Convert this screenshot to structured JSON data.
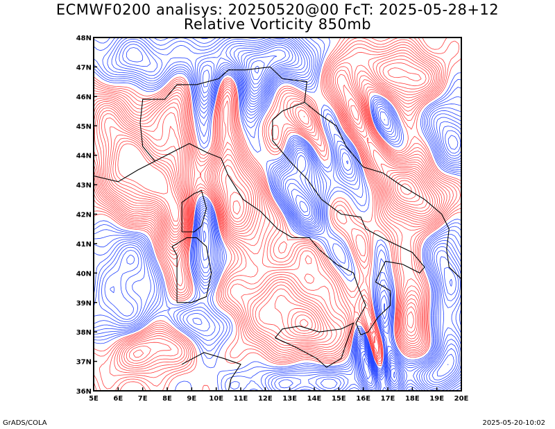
{
  "header": {
    "title": "ECMWF0200 analisys: 20250520@00 FcT: 2025-05-28+12",
    "subtitle": "Relative Vorticity 850mb"
  },
  "map": {
    "lon_range": [
      5,
      20
    ],
    "lat_range": [
      36,
      48
    ],
    "x_tick_labels": [
      "5E",
      "6E",
      "7E",
      "8E",
      "9E",
      "10E",
      "11E",
      "12E",
      "13E",
      "14E",
      "15E",
      "16E",
      "17E",
      "18E",
      "19E",
      "20E"
    ],
    "y_tick_labels": [
      "36N",
      "37N",
      "38N",
      "39N",
      "40N",
      "41N",
      "42N",
      "43N",
      "44N",
      "45N",
      "46N",
      "47N",
      "48N"
    ],
    "colors": {
      "positive": "#ff3d3d",
      "negative": "#2040ff",
      "coast": "#000000"
    }
  },
  "footer": {
    "credit": "GrADS/COLA",
    "timestamp": "2025-05-20-10:02"
  }
}
